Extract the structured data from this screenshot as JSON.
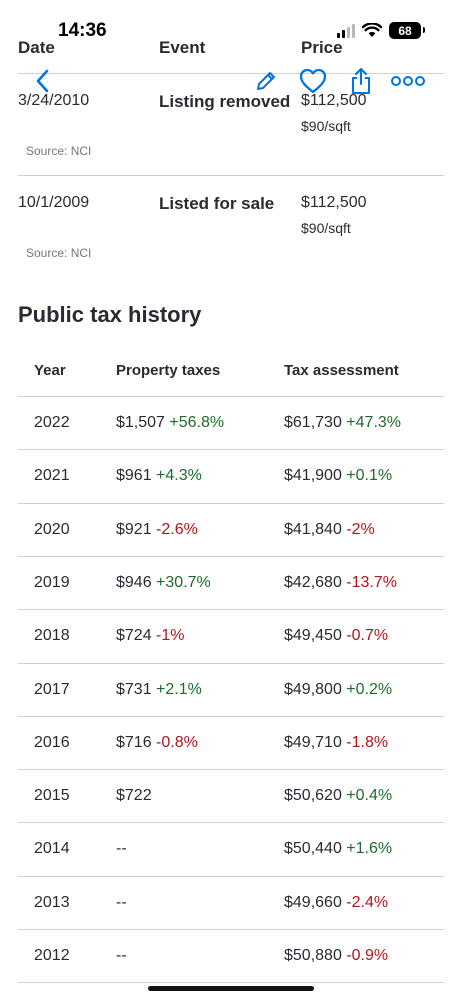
{
  "status_bar": {
    "time": "14:36",
    "battery": "68"
  },
  "price_history": {
    "columns": [
      "Date",
      "Event",
      "Price"
    ],
    "rows": [
      {
        "date": "3/24/2010",
        "event": "Listing removed",
        "price": "$112,500",
        "per_sqft": "$90/sqft",
        "source": "Source: NCI"
      },
      {
        "date": "10/1/2009",
        "event": "Listed for sale",
        "price": "$112,500",
        "per_sqft": "$90/sqft",
        "source": "Source: NCI"
      }
    ]
  },
  "tax_history": {
    "title": "Public tax history",
    "columns": [
      "Year",
      "Property taxes",
      "Tax assessment"
    ],
    "rows": [
      {
        "year": "2022",
        "tax": "$1,507",
        "tax_change": "+56.8%",
        "tax_dir": "pos",
        "assessment": "$61,730",
        "assess_change": "+47.3%",
        "assess_dir": "pos"
      },
      {
        "year": "2021",
        "tax": "$961",
        "tax_change": "+4.3%",
        "tax_dir": "pos",
        "assessment": "$41,900",
        "assess_change": "+0.1%",
        "assess_dir": "pos"
      },
      {
        "year": "2020",
        "tax": "$921",
        "tax_change": "-2.6%",
        "tax_dir": "neg",
        "assessment": "$41,840",
        "assess_change": "-2%",
        "assess_dir": "neg"
      },
      {
        "year": "2019",
        "tax": "$946",
        "tax_change": "+30.7%",
        "tax_dir": "pos",
        "assessment": "$42,680",
        "assess_change": "-13.7%",
        "assess_dir": "neg"
      },
      {
        "year": "2018",
        "tax": "$724",
        "tax_change": "-1%",
        "tax_dir": "neg",
        "assessment": "$49,450",
        "assess_change": "-0.7%",
        "assess_dir": "neg"
      },
      {
        "year": "2017",
        "tax": "$731",
        "tax_change": "+2.1%",
        "tax_dir": "pos",
        "assessment": "$49,800",
        "assess_change": "+0.2%",
        "assess_dir": "pos"
      },
      {
        "year": "2016",
        "tax": "$716",
        "tax_change": "-0.8%",
        "tax_dir": "neg",
        "assessment": "$49,710",
        "assess_change": "-1.8%",
        "assess_dir": "neg"
      },
      {
        "year": "2015",
        "tax": "$722",
        "tax_change": "",
        "tax_dir": "",
        "assessment": "$50,620",
        "assess_change": "+0.4%",
        "assess_dir": "pos"
      },
      {
        "year": "2014",
        "tax": "--",
        "tax_change": "",
        "tax_dir": "",
        "assessment": "$50,440",
        "assess_change": "+1.6%",
        "assess_dir": "pos"
      },
      {
        "year": "2013",
        "tax": "--",
        "tax_change": "",
        "tax_dir": "",
        "assessment": "$49,660",
        "assess_change": "-2.4%",
        "assess_dir": "neg"
      },
      {
        "year": "2012",
        "tax": "--",
        "tax_change": "",
        "tax_dir": "",
        "assessment": "$50,880",
        "assess_change": "-0.9%",
        "assess_dir": "neg"
      }
    ]
  },
  "toolbar": {
    "icons": [
      "back-chevron-icon",
      "edit-pencil-icon",
      "favorite-heart-icon",
      "share-icon",
      "more-options-icon"
    ],
    "accent": "#0074e4"
  },
  "colors": {
    "positive": "#1d6b2c",
    "negative": "#b1151c",
    "text": "#2a2a33",
    "muted": "#767676",
    "divider": "#d1d1d5"
  }
}
